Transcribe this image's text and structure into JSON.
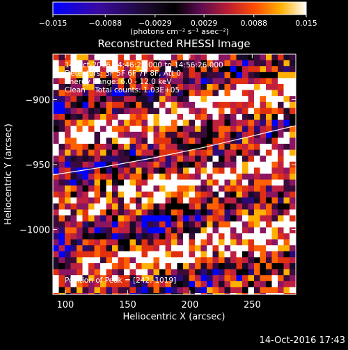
{
  "colorbar": {
    "ticks": [
      "-0.015",
      "-0.0088",
      "-0.0029",
      "0.0029",
      "0.0088",
      "0.015"
    ],
    "unit_label": "(photons cm⁻² s⁻¹ asec⁻²)",
    "range": [
      -0.015,
      0.015
    ]
  },
  "chart_data": {
    "type": "heatmap",
    "title": "Reconstructed RHESSI Image",
    "xlabel": "Heliocentric X (arcsec)",
    "ylabel": "Heliocentric Y (arcsec)",
    "xlim": [
      90,
      285
    ],
    "ylim": [
      -1050,
      -865
    ],
    "x_ticks": [
      100,
      150,
      200,
      250
    ],
    "y_ticks": [
      -900,
      -950,
      -1000
    ],
    "x_tick_labels": [
      "100",
      "150",
      "200",
      "250"
    ],
    "y_tick_labels": [
      "−900",
      "−950",
      "−1000"
    ],
    "grid": false,
    "colormap": [
      "#0000ff",
      "#2a0a78",
      "#1a0a2a",
      "#000000",
      "#3a0a3a",
      "#8a1560",
      "#c02040",
      "#e03010",
      "#ff6000",
      "#ffb000",
      "#ffffff"
    ],
    "limb": {
      "x": [
        90,
        130,
        170,
        210,
        250,
        285
      ],
      "y": [
        -958,
        -952,
        -945,
        -937,
        -928,
        -920
      ]
    }
  },
  "annotations": {
    "time_range": "14-Oct-2016 14:46:26.000 to 14:56:26.000",
    "detectors": "Detectors: 3F 5F 6F 7F 8F, Att 0",
    "energy": "Energy Range: 6.0 - 12.0 keV",
    "clean": "Clean    Total counts: 1.03E+05",
    "peak": "Position of Peak = [242,-1019]"
  },
  "footer": {
    "timestamp": "14-Oct-2016 17:43"
  }
}
